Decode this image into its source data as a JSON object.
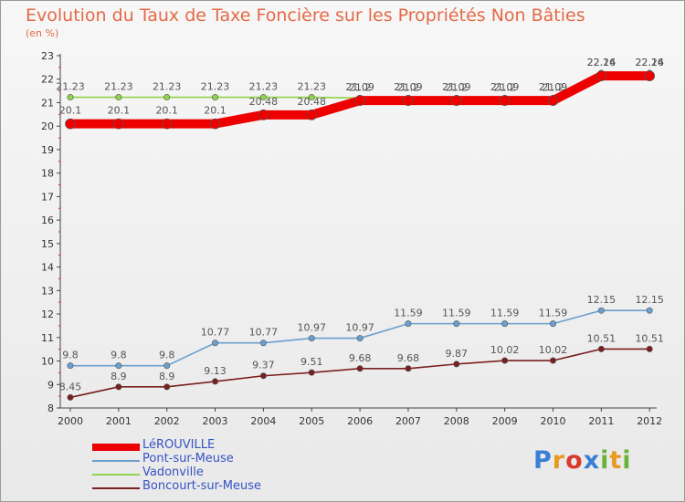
{
  "title": "Evolution du Taux de Taxe Foncière sur les Propriétés Non Bâties",
  "unit_label": "(en %)",
  "brand": "Proxiti",
  "chart_data": {
    "type": "line",
    "title": "Evolution du Taux de Taxe Foncière sur les Propriétés Non Bâties",
    "ylabel": "(en %)",
    "xlabel": "",
    "ylim": [
      8,
      23
    ],
    "yticks": [
      8,
      9,
      10,
      11,
      12,
      13,
      14,
      15,
      16,
      17,
      18,
      19,
      20,
      21,
      22,
      23
    ],
    "x": [
      2000,
      2001,
      2002,
      2003,
      2004,
      2005,
      2006,
      2007,
      2008,
      2009,
      2010,
      2011,
      2012
    ],
    "grid": false,
    "legend_position": "bottom-left",
    "series": [
      {
        "name": "LéROUVILLE",
        "color": "#ee0000",
        "values": [
          20.1,
          20.1,
          20.1,
          20.1,
          20.48,
          20.48,
          21.09,
          21.09,
          21.09,
          21.09,
          21.09,
          22.14,
          22.14
        ],
        "labels": [
          "20.1",
          "20.1",
          "20.1",
          "20.1",
          "20.48",
          "20.48",
          "21.09",
          "21.09",
          "21.09",
          "21.09",
          "21.09",
          "22.14",
          "22.14"
        ]
      },
      {
        "name": "Pont-sur-Meuse",
        "color": "#6a9fd0",
        "values": [
          9.8,
          9.8,
          9.8,
          10.77,
          10.77,
          10.97,
          10.97,
          11.59,
          11.59,
          11.59,
          11.59,
          12.15,
          12.15
        ],
        "labels": [
          "9.8",
          "9.8",
          "9.8",
          "10.77",
          "10.77",
          "10.97",
          "10.97",
          "11.59",
          "11.59",
          "11.59",
          "11.59",
          "12.15",
          "12.15"
        ]
      },
      {
        "name": "Vadonville",
        "color": "#8fd44a",
        "values": [
          21.23,
          21.23,
          21.23,
          21.23,
          21.23,
          21.23,
          21.2,
          21.2,
          21.2,
          21.2,
          21.2,
          22.26,
          22.26
        ],
        "labels": [
          "21.23",
          "21.23",
          "21.23",
          "21.23",
          "21.23",
          "21.23",
          "21.2",
          "21.2",
          "21.2",
          "21.2",
          "21.2",
          "22.26",
          "22.26"
        ]
      },
      {
        "name": "Boncourt-sur-Meuse",
        "color": "#7a1f1f",
        "values": [
          8.45,
          8.9,
          8.9,
          9.13,
          9.37,
          9.51,
          9.68,
          9.68,
          9.87,
          10.02,
          10.02,
          10.51,
          10.51
        ],
        "labels": [
          "8.45",
          "8.9",
          "8.9",
          "9.13",
          "9.37",
          "9.51",
          "9.68",
          "9.68",
          "9.87",
          "10.02",
          "10.02",
          "10.51",
          "10.51"
        ]
      }
    ]
  }
}
